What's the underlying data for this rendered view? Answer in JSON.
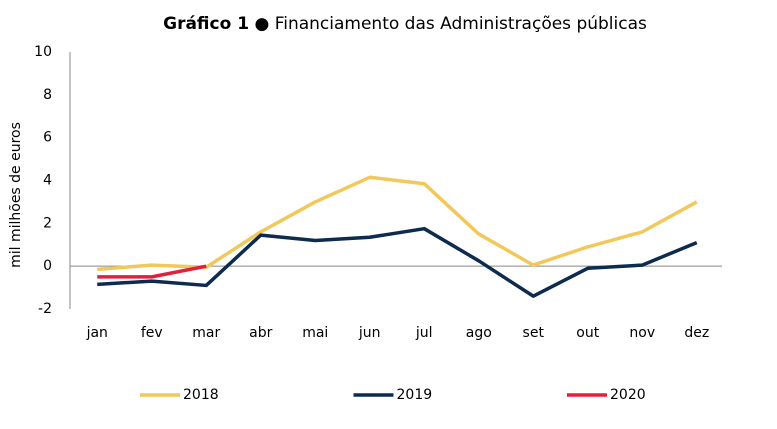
{
  "chart_data": {
    "type": "line",
    "title": {
      "label": "Gráfico 1",
      "text": "● Financiamento das Administrações públicas"
    },
    "y_label": "mil milhões de euros",
    "categories": [
      "jan",
      "fev",
      "mar",
      "abr",
      "mai",
      "jun",
      "jul",
      "ago",
      "set",
      "out",
      "nov",
      "dez"
    ],
    "series": [
      {
        "name": "2018",
        "color": "#f2c85b",
        "values": [
          -0.15,
          0.05,
          -0.05,
          1.6,
          3.0,
          4.15,
          3.85,
          1.5,
          0.05,
          0.9,
          1.6,
          3.0
        ]
      },
      {
        "name": "2019",
        "color": "#0d2b4e",
        "values": [
          -0.85,
          -0.7,
          -0.9,
          1.45,
          1.2,
          1.35,
          1.75,
          0.25,
          -1.4,
          -0.1,
          0.05,
          1.1
        ]
      },
      {
        "name": "2020",
        "color": "#e0203d",
        "values": [
          -0.5,
          -0.5,
          0.0,
          null,
          null,
          null,
          null,
          null,
          null,
          null,
          null,
          null
        ]
      }
    ],
    "ylim": [
      -2,
      10
    ],
    "yticks": [
      -2,
      0,
      2,
      4,
      6,
      8,
      10
    ],
    "grid": false,
    "legend": "bottom"
  }
}
